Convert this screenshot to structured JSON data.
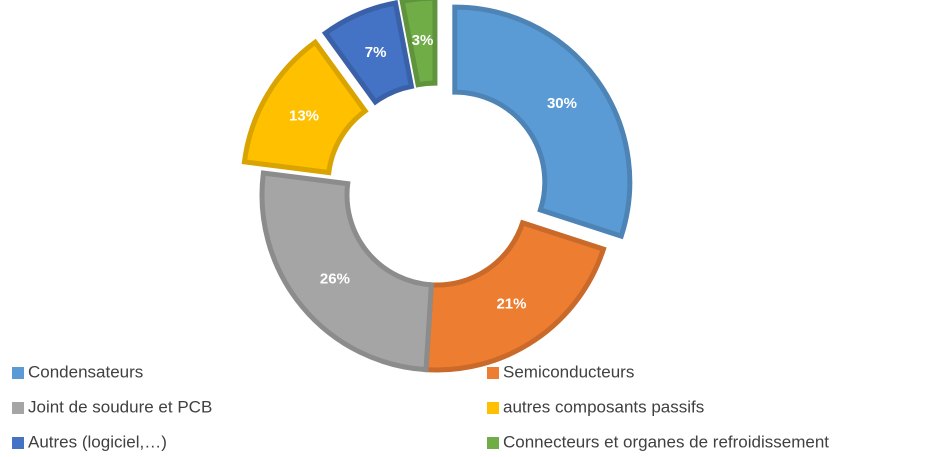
{
  "chart_data": {
    "type": "donut",
    "categories": [
      "Condensateurs",
      "Semiconducteurs",
      "Joint de soudure et PCB",
      "autres composants passifs",
      "Autres (logiciel,…)",
      "Connecteurs et organes de refroidissement"
    ],
    "values": [
      30,
      21,
      26,
      13,
      7,
      3
    ],
    "value_labels": [
      "30%",
      "21%",
      "26%",
      "13%",
      "7%",
      "3%"
    ],
    "colors": [
      "#5b9bd5",
      "#ed7d31",
      "#a5a5a5",
      "#ffc000",
      "#4472c4",
      "#70ad47"
    ],
    "exploded": [
      true,
      false,
      false,
      true,
      true,
      true
    ],
    "legend": "bottom"
  }
}
